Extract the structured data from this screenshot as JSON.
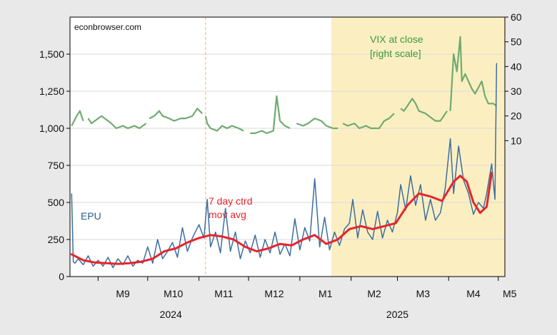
{
  "chart_data": {
    "type": "line",
    "watermark": "econbrowser.com",
    "left_axis": {
      "range": [
        0,
        1750
      ],
      "ticks": [
        0,
        250,
        500,
        750,
        1000,
        1250,
        1500
      ],
      "tick_labels": [
        "0",
        "250",
        "500",
        "750",
        "1,000",
        "1,250",
        "1,500"
      ]
    },
    "right_axis": {
      "range": [
        -45,
        60
      ],
      "ticks": [
        10,
        20,
        30,
        40,
        50,
        60
      ],
      "tick_labels": [
        "10",
        "20",
        "30",
        "40",
        "50",
        "60"
      ]
    },
    "x_axis": {
      "range": [
        "2024-08-15",
        "2025-05-05"
      ],
      "month_ticks": [
        {
          "label": "M9",
          "date": "2024-09-01"
        },
        {
          "label": "M10",
          "date": "2024-10-01"
        },
        {
          "label": "M11",
          "date": "2024-11-01"
        },
        {
          "label": "M12",
          "date": "2024-12-01"
        },
        {
          "label": "M1",
          "date": "2025-01-01"
        },
        {
          "label": "M2",
          "date": "2025-02-01"
        },
        {
          "label": "M3",
          "date": "2025-03-01"
        },
        {
          "label": "M4",
          "date": "2025-04-01"
        },
        {
          "label": "M5",
          "date": "2025-05-01"
        }
      ],
      "years": [
        {
          "label": "2024",
          "center": "2024-10-15"
        },
        {
          "label": "2025",
          "center": "2025-03-01"
        }
      ]
    },
    "shaded_region": {
      "start": "2025-01-20",
      "end": "2025-05-05",
      "color": "#fbefc2"
    },
    "reference_line": {
      "date": "2024-11-05",
      "color": "#f5b27a"
    },
    "annotations": [
      {
        "id": "vix",
        "lines": [
          "VIX at close",
          "[right scale]"
        ],
        "color": "#3b9a3b"
      },
      {
        "id": "mavg",
        "lines": [
          "7 day ctrd",
          "mov avg"
        ],
        "color": "#e8242b"
      },
      {
        "id": "epu",
        "lines": [
          "EPU"
        ],
        "color": "#2a5d91"
      }
    ],
    "series": [
      {
        "name": "EPU",
        "axis": "left",
        "color": "#3c6e9f",
        "points": [
          [
            "2024-08-16",
            560
          ],
          [
            "2024-08-17",
            100
          ],
          [
            "2024-08-18",
            90
          ],
          [
            "2024-08-20",
            120
          ],
          [
            "2024-08-23",
            80
          ],
          [
            "2024-08-26",
            140
          ],
          [
            "2024-08-29",
            70
          ],
          [
            "2024-09-01",
            110
          ],
          [
            "2024-09-04",
            70
          ],
          [
            "2024-09-07",
            130
          ],
          [
            "2024-09-10",
            60
          ],
          [
            "2024-09-13",
            120
          ],
          [
            "2024-09-16",
            80
          ],
          [
            "2024-09-19",
            140
          ],
          [
            "2024-09-22",
            70
          ],
          [
            "2024-09-25",
            110
          ],
          [
            "2024-09-28",
            90
          ],
          [
            "2024-10-01",
            200
          ],
          [
            "2024-10-04",
            90
          ],
          [
            "2024-10-07",
            250
          ],
          [
            "2024-10-10",
            120
          ],
          [
            "2024-10-13",
            170
          ],
          [
            "2024-10-16",
            230
          ],
          [
            "2024-10-19",
            130
          ],
          [
            "2024-10-22",
            330
          ],
          [
            "2024-10-25",
            170
          ],
          [
            "2024-10-28",
            260
          ],
          [
            "2024-11-01",
            350
          ],
          [
            "2024-11-04",
            260
          ],
          [
            "2024-11-06",
            520
          ],
          [
            "2024-11-08",
            200
          ],
          [
            "2024-11-11",
            300
          ],
          [
            "2024-11-14",
            160
          ],
          [
            "2024-11-17",
            460
          ],
          [
            "2024-11-20",
            170
          ],
          [
            "2024-11-23",
            300
          ],
          [
            "2024-11-26",
            120
          ],
          [
            "2024-11-29",
            240
          ],
          [
            "2024-12-02",
            160
          ],
          [
            "2024-12-05",
            280
          ],
          [
            "2024-12-08",
            130
          ],
          [
            "2024-12-11",
            250
          ],
          [
            "2024-12-14",
            160
          ],
          [
            "2024-12-17",
            300
          ],
          [
            "2024-12-20",
            150
          ],
          [
            "2024-12-23",
            220
          ],
          [
            "2024-12-26",
            140
          ],
          [
            "2024-12-29",
            390
          ],
          [
            "2025-01-01",
            180
          ],
          [
            "2025-01-04",
            330
          ],
          [
            "2025-01-07",
            240
          ],
          [
            "2025-01-10",
            660
          ],
          [
            "2025-01-13",
            200
          ],
          [
            "2025-01-16",
            400
          ],
          [
            "2025-01-19",
            180
          ],
          [
            "2025-01-22",
            300
          ],
          [
            "2025-01-25",
            210
          ],
          [
            "2025-01-28",
            320
          ],
          [
            "2025-01-31",
            360
          ],
          [
            "2025-02-02",
            520
          ],
          [
            "2025-02-05",
            260
          ],
          [
            "2025-02-08",
            450
          ],
          [
            "2025-02-11",
            300
          ],
          [
            "2025-02-14",
            250
          ],
          [
            "2025-02-17",
            440
          ],
          [
            "2025-02-20",
            260
          ],
          [
            "2025-02-23",
            380
          ],
          [
            "2025-02-26",
            300
          ],
          [
            "2025-03-01",
            430
          ],
          [
            "2025-03-03",
            620
          ],
          [
            "2025-03-06",
            450
          ],
          [
            "2025-03-09",
            680
          ],
          [
            "2025-03-12",
            480
          ],
          [
            "2025-03-15",
            620
          ],
          [
            "2025-03-18",
            380
          ],
          [
            "2025-03-21",
            520
          ],
          [
            "2025-03-24",
            380
          ],
          [
            "2025-03-27",
            430
          ],
          [
            "2025-03-30",
            600
          ],
          [
            "2025-04-02",
            930
          ],
          [
            "2025-04-04",
            560
          ],
          [
            "2025-04-07",
            880
          ],
          [
            "2025-04-10",
            650
          ],
          [
            "2025-04-13",
            560
          ],
          [
            "2025-04-16",
            420
          ],
          [
            "2025-04-19",
            500
          ],
          [
            "2025-04-22",
            460
          ],
          [
            "2025-04-24",
            560
          ],
          [
            "2025-04-27",
            760
          ],
          [
            "2025-04-29",
            520
          ],
          [
            "2025-04-30",
            1440
          ]
        ]
      },
      {
        "name": "7 day ctrd mov avg",
        "axis": "left",
        "color": "#e8242b",
        "points": [
          [
            "2024-08-16",
            150
          ],
          [
            "2024-08-23",
            110
          ],
          [
            "2024-08-30",
            95
          ],
          [
            "2024-09-06",
            90
          ],
          [
            "2024-09-13",
            85
          ],
          [
            "2024-09-20",
            90
          ],
          [
            "2024-09-27",
            100
          ],
          [
            "2024-10-04",
            120
          ],
          [
            "2024-10-11",
            170
          ],
          [
            "2024-10-18",
            190
          ],
          [
            "2024-10-25",
            230
          ],
          [
            "2024-11-01",
            260
          ],
          [
            "2024-11-08",
            280
          ],
          [
            "2024-11-15",
            270
          ],
          [
            "2024-11-22",
            250
          ],
          [
            "2024-11-29",
            200
          ],
          [
            "2024-12-06",
            170
          ],
          [
            "2024-12-13",
            190
          ],
          [
            "2024-12-20",
            220
          ],
          [
            "2024-12-27",
            210
          ],
          [
            "2025-01-03",
            250
          ],
          [
            "2025-01-10",
            280
          ],
          [
            "2025-01-17",
            220
          ],
          [
            "2025-01-24",
            250
          ],
          [
            "2025-01-31",
            320
          ],
          [
            "2025-02-07",
            340
          ],
          [
            "2025-02-14",
            320
          ],
          [
            "2025-02-21",
            340
          ],
          [
            "2025-02-28",
            360
          ],
          [
            "2025-03-07",
            480
          ],
          [
            "2025-03-14",
            560
          ],
          [
            "2025-03-21",
            540
          ],
          [
            "2025-03-28",
            510
          ],
          [
            "2025-04-04",
            640
          ],
          [
            "2025-04-08",
            680
          ],
          [
            "2025-04-12",
            640
          ],
          [
            "2025-04-16",
            500
          ],
          [
            "2025-04-20",
            430
          ],
          [
            "2025-04-24",
            470
          ],
          [
            "2025-04-27",
            700
          ]
        ]
      },
      {
        "name": "VIX at close",
        "axis": "right",
        "color": "#6fab6f",
        "segments": [
          [
            [
              "2024-08-16",
              16
            ],
            [
              "2024-08-19",
              20
            ],
            [
              "2024-08-21",
              22
            ],
            [
              "2024-08-23",
              18
            ]
          ],
          [
            [
              "2024-08-26",
              19
            ],
            [
              "2024-08-28",
              17
            ],
            [
              "2024-09-03",
              20
            ],
            [
              "2024-09-05",
              19
            ],
            [
              "2024-09-09",
              17
            ],
            [
              "2024-09-12",
              15
            ],
            [
              "2024-09-16",
              16
            ],
            [
              "2024-09-19",
              15
            ],
            [
              "2024-09-23",
              16
            ],
            [
              "2024-09-26",
              15
            ],
            [
              "2024-09-30",
              17
            ]
          ],
          [
            [
              "2024-10-02",
              19
            ],
            [
              "2024-10-05",
              20
            ],
            [
              "2024-10-08",
              22
            ],
            [
              "2024-10-10",
              20
            ],
            [
              "2024-10-14",
              19
            ],
            [
              "2024-10-17",
              18
            ],
            [
              "2024-10-21",
              19
            ],
            [
              "2024-10-24",
              19
            ],
            [
              "2024-10-28",
              20
            ],
            [
              "2024-10-31",
              23
            ],
            [
              "2024-11-03",
              21
            ]
          ],
          [
            [
              "2024-11-05",
              20
            ],
            [
              "2024-11-06",
              17
            ],
            [
              "2024-11-08",
              15
            ],
            [
              "2024-11-12",
              14
            ],
            [
              "2024-11-15",
              16
            ],
            [
              "2024-11-18",
              15
            ],
            [
              "2024-11-21",
              16
            ],
            [
              "2024-11-25",
              15
            ],
            [
              "2024-11-28",
              14
            ]
          ],
          [
            [
              "2024-12-02",
              13
            ],
            [
              "2024-12-05",
              13
            ],
            [
              "2024-12-09",
              14
            ],
            [
              "2024-12-12",
              13
            ],
            [
              "2024-12-16",
              14
            ],
            [
              "2024-12-18",
              28
            ],
            [
              "2024-12-20",
              18
            ],
            [
              "2024-12-23",
              16
            ],
            [
              "2024-12-26",
              15
            ]
          ],
          [
            [
              "2024-12-30",
              17
            ],
            [
              "2025-01-03",
              16
            ],
            [
              "2025-01-06",
              17
            ],
            [
              "2025-01-10",
              19
            ],
            [
              "2025-01-14",
              18
            ],
            [
              "2025-01-17",
              16
            ],
            [
              "2025-01-21",
              15
            ],
            [
              "2025-01-24",
              15
            ]
          ],
          [
            [
              "2025-01-27",
              17
            ],
            [
              "2025-01-30",
              16
            ],
            [
              "2025-02-03",
              17
            ],
            [
              "2025-02-06",
              15
            ],
            [
              "2025-02-10",
              16
            ],
            [
              "2025-02-13",
              15
            ],
            [
              "2025-02-18",
              15
            ],
            [
              "2025-02-21",
              18
            ],
            [
              "2025-02-24",
              19
            ],
            [
              "2025-02-27",
              21
            ]
          ],
          [
            [
              "2025-03-03",
              23
            ],
            [
              "2025-03-05",
              22
            ],
            [
              "2025-03-07",
              24
            ],
            [
              "2025-03-10",
              27
            ],
            [
              "2025-03-12",
              25
            ],
            [
              "2025-03-14",
              22
            ],
            [
              "2025-03-18",
              21
            ],
            [
              "2025-03-20",
              20
            ],
            [
              "2025-03-24",
              18
            ],
            [
              "2025-03-27",
              18
            ],
            [
              "2025-03-31",
              22
            ]
          ],
          [
            [
              "2025-04-02",
              22
            ],
            [
              "2025-04-04",
              45
            ],
            [
              "2025-04-06",
              38
            ],
            [
              "2025-04-08",
              52
            ],
            [
              "2025-04-09",
              34
            ],
            [
              "2025-04-11",
              37
            ],
            [
              "2025-04-15",
              31
            ],
            [
              "2025-04-17",
              29
            ],
            [
              "2025-04-21",
              34
            ],
            [
              "2025-04-23",
              28
            ],
            [
              "2025-04-25",
              25
            ],
            [
              "2025-04-28",
              25
            ],
            [
              "2025-04-30",
              24
            ]
          ]
        ]
      }
    ]
  }
}
